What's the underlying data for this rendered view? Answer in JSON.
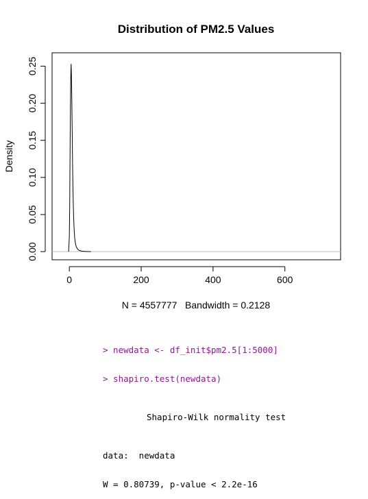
{
  "chart_data": {
    "type": "line",
    "title": "Distribution of PM2.5 Values",
    "ylabel": "Density",
    "xlabel": "N = 4557777   Bandwidth = 0.2128",
    "x_ticks": [
      0,
      200,
      400,
      600
    ],
    "y_ticks": [
      0.0,
      0.05,
      0.1,
      0.15,
      0.2,
      0.25
    ],
    "y_tick_labels": [
      "0.00",
      "0.05",
      "0.10",
      "0.15",
      "0.20",
      "0.25"
    ],
    "xlim": [
      -48,
      755
    ],
    "ylim": [
      -0.011,
      0.268
    ],
    "grid": false,
    "baseline": 0,
    "baseline_color": "#bebebe",
    "line_color": "#000000",
    "series": [
      {
        "x": [
          -2,
          0,
          1,
          2,
          3,
          4,
          5,
          6,
          7,
          8,
          9,
          10,
          11,
          12,
          13,
          14,
          15,
          17,
          19,
          22,
          26,
          30,
          35,
          40,
          45,
          50,
          55,
          60
        ],
        "y": [
          0.0,
          0.02,
          0.06,
          0.13,
          0.19,
          0.235,
          0.253,
          0.235,
          0.2,
          0.16,
          0.12,
          0.088,
          0.064,
          0.046,
          0.034,
          0.025,
          0.018,
          0.011,
          0.007,
          0.004,
          0.002,
          0.0012,
          0.0007,
          0.0004,
          0.0002,
          0.0001,
          5e-05,
          0.0
        ]
      }
    ]
  },
  "console": {
    "cmd1": "> newdata <- df_init$pm2.5[1:5000]",
    "cmd2": "> shapiro.test(newdata)",
    "test_title": "Shapiro-Wilk normality test",
    "data_line": "data:  newdata",
    "result_line": "W = 0.80739, p-value < 2.2e-16"
  }
}
